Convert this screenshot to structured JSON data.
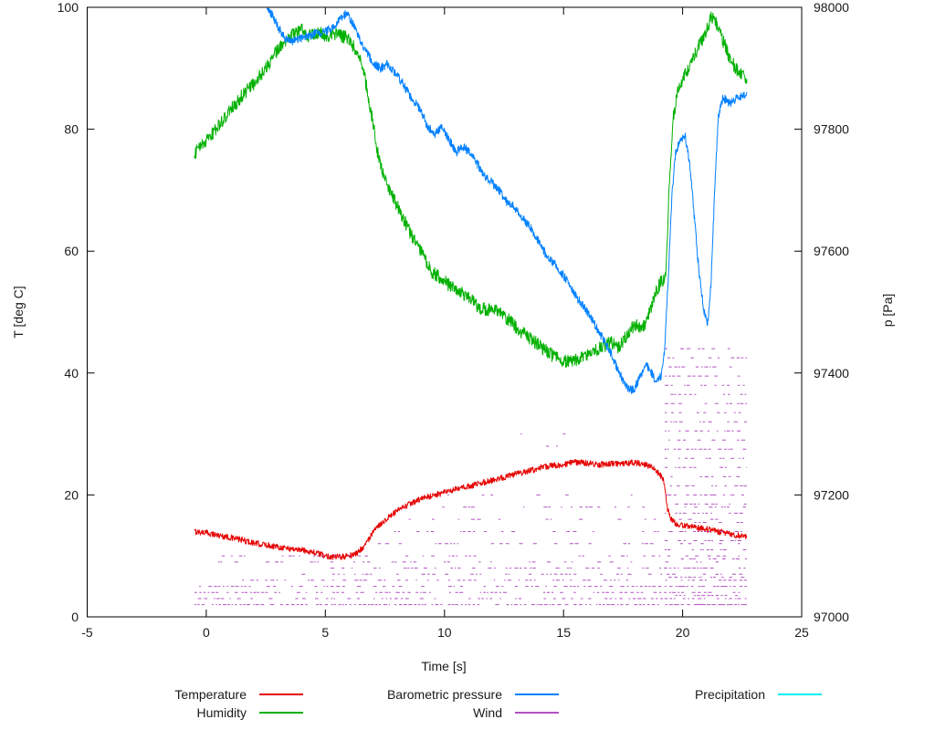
{
  "chart_data": {
    "type": "line",
    "title": "",
    "xlabel": "Time [s]",
    "ylabel_left": "T [deg C]",
    "ylabel_right": "p [Pa]",
    "xlim": [
      -5,
      25
    ],
    "ylim_left": [
      0,
      100
    ],
    "ylim_right": [
      97000,
      98000
    ],
    "xticks": [
      -5,
      0,
      5,
      10,
      15,
      20,
      25
    ],
    "yticks_left": [
      0,
      20,
      40,
      60,
      80,
      100
    ],
    "yticks_right": [
      97000,
      97200,
      97400,
      97600,
      97800,
      98000
    ],
    "grid": false,
    "legend_position": "below",
    "series": [
      {
        "key": "temperature",
        "name": "Temperature",
        "color": "#e60000",
        "axis": "left",
        "render": "line",
        "noise": 0.5,
        "points": [
          [
            -0.5,
            14
          ],
          [
            0,
            13.8
          ],
          [
            0.5,
            13.4
          ],
          [
            1,
            13
          ],
          [
            1.5,
            12.6
          ],
          [
            2,
            12.1
          ],
          [
            2.5,
            11.8
          ],
          [
            3,
            11.5
          ],
          [
            3.5,
            11.2
          ],
          [
            4,
            11
          ],
          [
            4.5,
            10.6
          ],
          [
            5,
            10
          ],
          [
            5.5,
            9.8
          ],
          [
            6,
            10
          ],
          [
            6.3,
            10.4
          ],
          [
            6.6,
            11.5
          ],
          [
            7,
            13.8
          ],
          [
            7.3,
            15.2
          ],
          [
            7.6,
            16.2
          ],
          [
            8,
            17.3
          ],
          [
            8.4,
            18.2
          ],
          [
            8.8,
            19
          ],
          [
            9.2,
            19.6
          ],
          [
            9.6,
            20
          ],
          [
            10,
            20.4
          ],
          [
            10.5,
            20.9
          ],
          [
            11,
            21.4
          ],
          [
            11.5,
            21.9
          ],
          [
            12,
            22.4
          ],
          [
            12.5,
            22.9
          ],
          [
            13,
            23.4
          ],
          [
            13.5,
            23.9
          ],
          [
            14,
            24.4
          ],
          [
            14.5,
            24.8
          ],
          [
            15,
            25
          ],
          [
            15.5,
            25.4
          ],
          [
            16,
            25.2
          ],
          [
            16.5,
            25
          ],
          [
            17,
            25.1
          ],
          [
            17.5,
            25.2
          ],
          [
            18,
            25.3
          ],
          [
            18.5,
            24.9
          ],
          [
            18.8,
            24.3
          ],
          [
            19,
            23.6
          ],
          [
            19.2,
            22.5
          ],
          [
            19.35,
            18
          ],
          [
            19.5,
            16
          ],
          [
            19.7,
            15.4
          ],
          [
            20,
            15
          ],
          [
            20.5,
            14.7
          ],
          [
            21,
            14.4
          ],
          [
            21.5,
            14
          ],
          [
            22,
            13.6
          ],
          [
            22.4,
            13.3
          ],
          [
            22.7,
            13.2
          ]
        ]
      },
      {
        "key": "humidity",
        "name": "Humidity",
        "color": "#00b000",
        "axis": "left",
        "render": "line",
        "noise": 1.1,
        "points": [
          [
            -0.5,
            76
          ],
          [
            0,
            78
          ],
          [
            0.5,
            80.5
          ],
          [
            1,
            83
          ],
          [
            1.5,
            85.5
          ],
          [
            2,
            87.5
          ],
          [
            2.5,
            90
          ],
          [
            3,
            93
          ],
          [
            3.5,
            95
          ],
          [
            4,
            96.5
          ],
          [
            4.3,
            95.3
          ],
          [
            4.7,
            96
          ],
          [
            5,
            95
          ],
          [
            5.4,
            95.6
          ],
          [
            5.8,
            95.2
          ],
          [
            6.1,
            94
          ],
          [
            6.4,
            92
          ],
          [
            6.6,
            89.5
          ],
          [
            6.8,
            85.5
          ],
          [
            7,
            81
          ],
          [
            7.2,
            76
          ],
          [
            7.5,
            71.5
          ],
          [
            7.8,
            69.5
          ],
          [
            8,
            67.5
          ],
          [
            8.5,
            63.5
          ],
          [
            9,
            60
          ],
          [
            9.5,
            56.5
          ],
          [
            10,
            55
          ],
          [
            10.5,
            53.5
          ],
          [
            11,
            52.5
          ],
          [
            11.5,
            50.5
          ],
          [
            12,
            50.5
          ],
          [
            12.5,
            49.5
          ],
          [
            13,
            47.5
          ],
          [
            13.5,
            46
          ],
          [
            14,
            44.5
          ],
          [
            14.5,
            43
          ],
          [
            15,
            42
          ],
          [
            15.5,
            42
          ],
          [
            16,
            43
          ],
          [
            16.5,
            44
          ],
          [
            17,
            45
          ],
          [
            17.3,
            44
          ],
          [
            17.6,
            46
          ],
          [
            18,
            48
          ],
          [
            18.3,
            47
          ],
          [
            18.6,
            50
          ],
          [
            18.9,
            53.5
          ],
          [
            19.1,
            55
          ],
          [
            19.3,
            55.5
          ],
          [
            19.45,
            72
          ],
          [
            19.6,
            82
          ],
          [
            19.8,
            86
          ],
          [
            20,
            88
          ],
          [
            20.3,
            90.5
          ],
          [
            20.6,
            93
          ],
          [
            21,
            96
          ],
          [
            21.2,
            98.5
          ],
          [
            21.4,
            97.5
          ],
          [
            21.6,
            95.5
          ],
          [
            21.8,
            93.5
          ],
          [
            22,
            91.5
          ],
          [
            22.3,
            89.5
          ],
          [
            22.7,
            88
          ]
        ]
      },
      {
        "key": "pressure",
        "name": "Barometric pressure",
        "color": "#0080ff",
        "axis": "right",
        "render": "line",
        "noise": 7,
        "points": [
          [
            2.55,
            98000
          ],
          [
            2.8,
            97985
          ],
          [
            3,
            97968
          ],
          [
            3.3,
            97950
          ],
          [
            3.6,
            97944
          ],
          [
            4,
            97950
          ],
          [
            4.5,
            97956
          ],
          [
            5,
            97960
          ],
          [
            5.4,
            97968
          ],
          [
            5.7,
            97984
          ],
          [
            5.9,
            97990
          ],
          [
            6.1,
            97978
          ],
          [
            6.4,
            97950
          ],
          [
            6.7,
            97928
          ],
          [
            7,
            97910
          ],
          [
            7.3,
            97900
          ],
          [
            7.6,
            97906
          ],
          [
            8,
            97890
          ],
          [
            8.3,
            97872
          ],
          [
            8.6,
            97852
          ],
          [
            9,
            97832
          ],
          [
            9.3,
            97804
          ],
          [
            9.6,
            97792
          ],
          [
            9.9,
            97804
          ],
          [
            10.2,
            97782
          ],
          [
            10.5,
            97762
          ],
          [
            10.8,
            97772
          ],
          [
            11.1,
            97760
          ],
          [
            11.4,
            97742
          ],
          [
            11.7,
            97722
          ],
          [
            12,
            97712
          ],
          [
            12.3,
            97700
          ],
          [
            12.6,
            97682
          ],
          [
            13,
            97670
          ],
          [
            13.3,
            97652
          ],
          [
            13.6,
            97640
          ],
          [
            14,
            97612
          ],
          [
            14.3,
            97592
          ],
          [
            14.6,
            97580
          ],
          [
            15,
            97560
          ],
          [
            15.3,
            97542
          ],
          [
            15.6,
            97522
          ],
          [
            16,
            97500
          ],
          [
            16.3,
            97480
          ],
          [
            16.6,
            97460
          ],
          [
            17,
            97432
          ],
          [
            17.3,
            97402
          ],
          [
            17.6,
            97382
          ],
          [
            17.8,
            97372
          ],
          [
            18,
            97376
          ],
          [
            18.2,
            97392
          ],
          [
            18.5,
            97412
          ],
          [
            18.7,
            97400
          ],
          [
            18.9,
            97386
          ],
          [
            19.1,
            97396
          ],
          [
            19.25,
            97440
          ],
          [
            19.4,
            97560
          ],
          [
            19.55,
            97690
          ],
          [
            19.7,
            97760
          ],
          [
            19.9,
            97782
          ],
          [
            20.1,
            97790
          ],
          [
            20.3,
            97742
          ],
          [
            20.5,
            97652
          ],
          [
            20.7,
            97562
          ],
          [
            20.9,
            97502
          ],
          [
            21.05,
            97482
          ],
          [
            21.2,
            97552
          ],
          [
            21.35,
            97702
          ],
          [
            21.5,
            97822
          ],
          [
            21.7,
            97852
          ],
          [
            22,
            97842
          ],
          [
            22.3,
            97852
          ],
          [
            22.7,
            97858
          ]
        ]
      },
      {
        "key": "wind",
        "name": "Wind",
        "color": "#b050c0",
        "axis": "left",
        "render": "dashes",
        "bands": [
          {
            "y": 2,
            "x1": -0.5,
            "x2": 22.7,
            "density": 0.85
          },
          {
            "y": 3,
            "x1": -0.5,
            "x2": 22.7,
            "density": 0.5
          },
          {
            "y": 4,
            "x1": -0.5,
            "x2": 22.7,
            "density": 0.55
          },
          {
            "y": 5,
            "x1": -0.3,
            "x2": 22.7,
            "density": 0.6
          },
          {
            "y": 6,
            "x1": 1.5,
            "x2": 22.7,
            "density": 0.5
          },
          {
            "y": 7,
            "x1": 4,
            "x2": 22.7,
            "density": 0.45
          },
          {
            "y": 8,
            "x1": 5,
            "x2": 22.7,
            "density": 0.4
          },
          {
            "y": 9,
            "x1": 0.5,
            "x2": 22.7,
            "density": 0.3
          },
          {
            "y": 10,
            "x1": 0.5,
            "x2": 22.7,
            "density": 0.4
          },
          {
            "y": 12,
            "x1": 7,
            "x2": 22.7,
            "density": 0.35
          },
          {
            "y": 14,
            "x1": 7.5,
            "x2": 22.7,
            "density": 0.3
          },
          {
            "y": 16,
            "x1": 8.5,
            "x2": 22.7,
            "density": 0.28
          },
          {
            "y": 18,
            "x1": 9,
            "x2": 22.7,
            "density": 0.25
          },
          {
            "y": 20,
            "x1": 10,
            "x2": 22.7,
            "density": 0.2
          },
          {
            "y": 25,
            "x1": 11,
            "x2": 16.5,
            "density": 0.06
          },
          {
            "y": 28,
            "x1": 12.5,
            "x2": 16,
            "density": 0.08
          },
          {
            "y": 30,
            "x1": 10.5,
            "x2": 16,
            "density": 0.08
          }
        ],
        "burst": {
          "x1": 19.25,
          "x2": 22.7,
          "y_from": 2,
          "y_to": 45,
          "y_step": 1.5,
          "density": 0.5
        }
      },
      {
        "key": "precipitation",
        "name": "Precipitation",
        "color": "#00eeee",
        "axis": "left",
        "render": "line",
        "noise": 0,
        "points": []
      }
    ]
  }
}
